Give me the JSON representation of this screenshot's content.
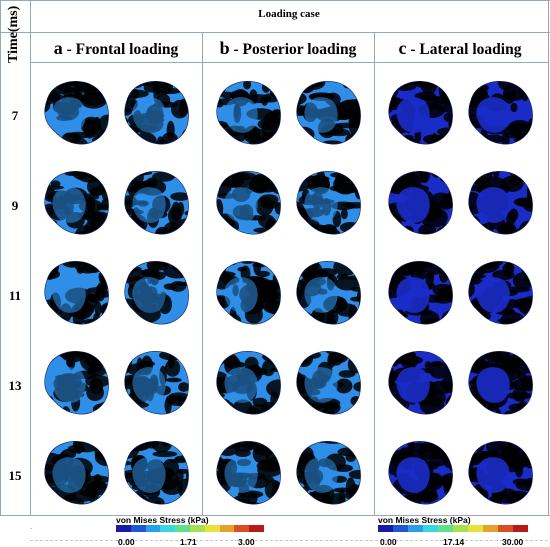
{
  "figure": {
    "header_label": "Loading case",
    "time_axis_label": "Time(ms)",
    "cases": [
      {
        "letter": "a",
        "title": " - Frontal loading",
        "palette": "mixed"
      },
      {
        "letter": "b",
        "title": " - Posterior loading",
        "palette": "mixed"
      },
      {
        "letter": "c",
        "title": " - Lateral loading",
        "palette": "lateral"
      }
    ],
    "times": [
      "7",
      "9",
      "11",
      "13",
      "15"
    ],
    "legends": [
      {
        "title": "von Mises Stress (kPa)",
        "ticks": [
          "0.00",
          "1.71",
          "3.00"
        ],
        "colors": [
          "#1a1aa8",
          "#1f57d4",
          "#2a9ee8",
          "#37d6e0",
          "#5fe08a",
          "#a6e04a",
          "#e8e23a",
          "#e8a22a",
          "#d8501f",
          "#b81a1a"
        ]
      },
      {
        "title": "von Mises Stress (kPa)",
        "ticks": [
          "0.00",
          "17.14",
          "30.00"
        ],
        "colors": [
          "#1a1aa8",
          "#1f57d4",
          "#2a9ee8",
          "#37d6e0",
          "#5fe08a",
          "#a6e04a",
          "#e8e23a",
          "#e8a22a",
          "#d8501f",
          "#b81a1a"
        ]
      }
    ]
  },
  "stress_palette": {
    "low": "#1a2cc8",
    "mid_low": "#2f8fe8",
    "mid": "#3fd7d0",
    "mid_high": "#6fe06a",
    "high": "#e8e23a",
    "peak": "#d8301f"
  }
}
